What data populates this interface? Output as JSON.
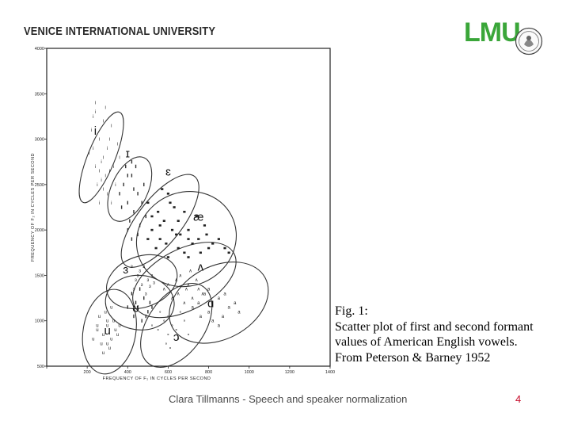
{
  "header": {
    "institution": "VENICE INTERNATIONAL UNIVERSITY",
    "partner_logo": "LMU"
  },
  "caption": {
    "line1": "Fig. 1:",
    "line2": "Scatter plot of first and second formant",
    "line3": "values of American English vowels.",
    "line4": "From Peterson & Barney 1952"
  },
  "footer": {
    "text": "Clara Tillmanns - Speech and speaker normalization",
    "page_number": "4"
  },
  "colors": {
    "brand_red": "#c8102e",
    "lmu_green": "#3aa639"
  },
  "chart_data": {
    "type": "scatter",
    "xlabel": "FREQUENCY OF F₁ IN CYCLES PER SECOND",
    "ylabel": "FREQUENCY OF F₂ IN CYCLES PER SECOND",
    "xlim": [
      0,
      1400
    ],
    "ylim": [
      500,
      4000
    ],
    "x_ticks": [
      0,
      200,
      400,
      600,
      800,
      1000,
      1200,
      1400
    ],
    "x_tick_labels": [
      "",
      "200",
      "400",
      "600",
      "800",
      "1000",
      "1200",
      "1400"
    ],
    "y_ticks": [
      500,
      1000,
      1500,
      2000,
      2500,
      3000,
      3500,
      4000
    ],
    "y_tick_labels": [
      "500",
      "1000",
      "1500",
      "2000",
      "2500",
      "3000",
      "3500",
      "4000"
    ],
    "grid": false,
    "regions": [
      {
        "label": "i",
        "center": [
          270,
          2800
        ],
        "rx": 240,
        "ry": 150,
        "angle": -68,
        "label_pos": [
          240,
          3050
        ]
      },
      {
        "label": "ɪ",
        "center": [
          410,
          2450
        ],
        "rx": 90,
        "ry": 380,
        "angle": 25,
        "label_pos": [
          400,
          2800
        ]
      },
      {
        "label": "ɛ",
        "center": [
          560,
          2100
        ],
        "rx": 110,
        "ry": 620,
        "angle": 38,
        "label_pos": [
          600,
          2600
        ]
      },
      {
        "label": "æ",
        "center": [
          690,
          1900
        ],
        "rx": 230,
        "ry": 560,
        "angle": 62,
        "label_pos": [
          750,
          2100
        ]
      },
      {
        "label": "ʌ",
        "center": [
          680,
          1450
        ],
        "rx": 150,
        "ry": 620,
        "angle": 62,
        "label_pos": [
          760,
          1550
        ]
      },
      {
        "label": "ɑ",
        "center": [
          850,
          1200
        ],
        "rx": 180,
        "ry": 580,
        "angle": 62,
        "label_pos": [
          810,
          1150
        ]
      },
      {
        "label": "ɜ",
        "center": [
          470,
          1430
        ],
        "rx": 180,
        "ry": 280,
        "angle": -20,
        "label_pos": [
          390,
          1520
        ]
      },
      {
        "label": "ʊ",
        "center": [
          460,
          1200
        ],
        "rx": 170,
        "ry": 300,
        "angle": 5,
        "label_pos": [
          440,
          1100
        ]
      },
      {
        "label": "u",
        "center": [
          310,
          880
        ],
        "rx": 130,
        "ry": 470,
        "angle": 10,
        "label_pos": [
          300,
          850
        ]
      },
      {
        "label": "ɔ",
        "center": [
          640,
          950
        ],
        "rx": 140,
        "ry": 520,
        "angle": 35,
        "label_pos": [
          640,
          780
        ]
      }
    ],
    "series": [
      {
        "label": "i",
        "marker": "i",
        "points": [
          [
            220,
            3100
          ],
          [
            240,
            3300
          ],
          [
            260,
            3000
          ],
          [
            230,
            2900
          ],
          [
            270,
            2750
          ],
          [
            290,
            2600
          ],
          [
            300,
            2900
          ],
          [
            250,
            2500
          ],
          [
            280,
            3200
          ],
          [
            310,
            3000
          ],
          [
            330,
            2700
          ],
          [
            260,
            2650
          ],
          [
            240,
            3400
          ],
          [
            300,
            2400
          ],
          [
            320,
            3150
          ],
          [
            280,
            2800
          ],
          [
            210,
            2850
          ],
          [
            350,
            2950
          ],
          [
            230,
            3250
          ],
          [
            270,
            2550
          ],
          [
            340,
            2500
          ],
          [
            260,
            2300
          ],
          [
            290,
            3350
          ],
          [
            310,
            2650
          ],
          [
            240,
            2700
          ],
          [
            360,
            2800
          ],
          [
            320,
            2300
          ],
          [
            280,
            2450
          ]
        ]
      },
      {
        "label": "ɪ",
        "marker": "·",
        "points": [
          [
            380,
            2500
          ],
          [
            400,
            2300
          ],
          [
            420,
            2600
          ],
          [
            430,
            2200
          ],
          [
            390,
            2700
          ],
          [
            450,
            2400
          ],
          [
            410,
            2100
          ],
          [
            470,
            2300
          ],
          [
            440,
            2700
          ],
          [
            400,
            2000
          ],
          [
            460,
            2050
          ],
          [
            420,
            1900
          ],
          [
            480,
            2500
          ],
          [
            370,
            2250
          ],
          [
            430,
            2450
          ],
          [
            490,
            2150
          ],
          [
            400,
            2600
          ],
          [
            450,
            1950
          ],
          [
            360,
            2400
          ],
          [
            420,
            2750
          ]
        ]
      },
      {
        "label": "ɛ",
        "marker": "■",
        "points": [
          [
            500,
            2300
          ],
          [
            550,
            2200
          ],
          [
            580,
            2100
          ],
          [
            600,
            2400
          ],
          [
            520,
            2000
          ],
          [
            560,
            1900
          ],
          [
            620,
            2000
          ],
          [
            650,
            1800
          ],
          [
            540,
            1800
          ],
          [
            600,
            1700
          ],
          [
            500,
            1900
          ],
          [
            570,
            2450
          ],
          [
            630,
            2250
          ],
          [
            680,
            1750
          ],
          [
            520,
            2150
          ],
          [
            590,
            1850
          ],
          [
            640,
            1950
          ],
          [
            560,
            2050
          ],
          [
            610,
            2300
          ],
          [
            700,
            1900
          ]
        ]
      },
      {
        "label": "æ",
        "marker": "■",
        "points": [
          [
            650,
            2100
          ],
          [
            700,
            2000
          ],
          [
            750,
            1900
          ],
          [
            800,
            1800
          ],
          [
            680,
            2200
          ],
          [
            720,
            1850
          ],
          [
            780,
            2050
          ],
          [
            850,
            1900
          ],
          [
            760,
            1750
          ],
          [
            700,
            1700
          ],
          [
            820,
            1850
          ],
          [
            740,
            2150
          ],
          [
            880,
            1800
          ],
          [
            660,
            1950
          ],
          [
            790,
            1950
          ],
          [
            900,
            1750
          ]
        ]
      },
      {
        "label": "ʌ",
        "marker": "∧",
        "points": [
          [
            600,
            1400
          ],
          [
            650,
            1300
          ],
          [
            700,
            1400
          ],
          [
            720,
            1250
          ],
          [
            660,
            1500
          ],
          [
            750,
            1350
          ],
          [
            620,
            1250
          ],
          [
            680,
            1200
          ],
          [
            740,
            1450
          ],
          [
            580,
            1350
          ],
          [
            710,
            1550
          ],
          [
            770,
            1300
          ],
          [
            640,
            1450
          ],
          [
            690,
            1350
          ]
        ]
      },
      {
        "label": "ɑ",
        "marker": "a",
        "points": [
          [
            750,
            1200
          ],
          [
            800,
            1100
          ],
          [
            850,
            1250
          ],
          [
            900,
            1150
          ],
          [
            780,
            1300
          ],
          [
            820,
            1000
          ],
          [
            870,
            1050
          ],
          [
            950,
            1100
          ],
          [
            720,
            1150
          ],
          [
            880,
            1300
          ],
          [
            800,
            1350
          ],
          [
            930,
            1200
          ],
          [
            760,
            1050
          ],
          [
            850,
            950
          ]
        ]
      },
      {
        "label": "ɜ",
        "marker": "ɜ",
        "points": [
          [
            450,
            1500
          ],
          [
            470,
            1400
          ],
          [
            500,
            1450
          ],
          [
            430,
            1350
          ],
          [
            480,
            1600
          ],
          [
            520,
            1500
          ],
          [
            460,
            1550
          ],
          [
            510,
            1380
          ],
          [
            440,
            1450
          ],
          [
            490,
            1300
          ],
          [
            530,
            1420
          ],
          [
            420,
            1600
          ]
        ]
      },
      {
        "label": "ʊ",
        "marker": "·",
        "points": [
          [
            420,
            1300
          ],
          [
            450,
            1150
          ],
          [
            480,
            1250
          ],
          [
            500,
            1100
          ],
          [
            430,
            1050
          ],
          [
            470,
            1000
          ],
          [
            510,
            1200
          ],
          [
            440,
            1200
          ],
          [
            490,
            1050
          ],
          [
            460,
            1350
          ],
          [
            400,
            1150
          ],
          [
            520,
            1150
          ]
        ]
      },
      {
        "label": "u",
        "marker": "u",
        "points": [
          [
            250,
            900
          ],
          [
            280,
            850
          ],
          [
            300,
            950
          ],
          [
            320,
            800
          ],
          [
            270,
            750
          ],
          [
            300,
            1000
          ],
          [
            340,
            900
          ],
          [
            260,
            1050
          ],
          [
            310,
            700
          ],
          [
            290,
            1100
          ],
          [
            350,
            850
          ],
          [
            230,
            800
          ],
          [
            330,
            1000
          ],
          [
            280,
            650
          ],
          [
            360,
            950
          ],
          [
            250,
            950
          ],
          [
            320,
            1150
          ],
          [
            300,
            750
          ]
        ]
      },
      {
        "label": "ɔ",
        "marker": "∘",
        "points": [
          [
            550,
            900
          ],
          [
            600,
            850
          ],
          [
            580,
            1000
          ],
          [
            620,
            950
          ],
          [
            650,
            800
          ],
          [
            560,
            1100
          ],
          [
            600,
            1050
          ],
          [
            640,
            900
          ],
          [
            680,
            1000
          ],
          [
            520,
            950
          ],
          [
            590,
            750
          ],
          [
            660,
            1100
          ],
          [
            610,
            700
          ],
          [
            700,
            850
          ]
        ]
      }
    ]
  }
}
